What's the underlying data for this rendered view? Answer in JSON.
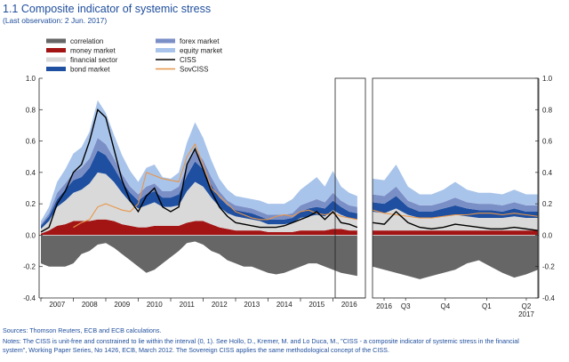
{
  "title": "1.1 Composite indicator of systemic stress",
  "subtitle": "(Last observation: 2 Jun. 2017)",
  "colors": {
    "correlation": "#666666",
    "money_market": "#a31515",
    "financial_sector": "#d9d9d9",
    "bond_market": "#1f4fa0",
    "forex_market": "#7b8fc7",
    "equity_market": "#a9c4ea",
    "ciss": "#000000",
    "sovciss": "#e8964a",
    "title": "#1f4e9c"
  },
  "legend": [
    {
      "key": "correlation",
      "label": "correlation",
      "type": "area"
    },
    {
      "key": "forex_market",
      "label": "forex market",
      "type": "area"
    },
    {
      "key": "money_market",
      "label": "money market",
      "type": "area"
    },
    {
      "key": "equity_market",
      "label": "equity market",
      "type": "area"
    },
    {
      "key": "financial_sector",
      "label": "financial sector",
      "type": "area"
    },
    {
      "key": "ciss",
      "label": "CISS",
      "type": "line"
    },
    {
      "key": "bond_market",
      "label": "bond market",
      "type": "area"
    },
    {
      "key": "sovciss",
      "label": "SovCISS",
      "type": "line"
    }
  ],
  "chart_data": {
    "type": "area",
    "ylim": [
      -0.4,
      1.0
    ],
    "y_ticks": [
      "-0.4",
      "-0.2",
      "0.0",
      "0.2",
      "0.4",
      "0.6",
      "0.8",
      "1.0"
    ],
    "grid": false,
    "legend_position": "top",
    "panels": [
      {
        "name": "long",
        "x_ticks": [
          "2007",
          "2008",
          "2009",
          "2010",
          "2011",
          "2012",
          "2013",
          "2014",
          "2015",
          "2016"
        ],
        "x": [
          2007.0,
          2007.25,
          2007.5,
          2007.75,
          2008.0,
          2008.25,
          2008.5,
          2008.75,
          2009.0,
          2009.25,
          2009.5,
          2009.75,
          2010.0,
          2010.25,
          2010.5,
          2010.75,
          2011.0,
          2011.25,
          2011.5,
          2011.75,
          2012.0,
          2012.25,
          2012.5,
          2012.75,
          2013.0,
          2013.25,
          2013.5,
          2013.75,
          2014.0,
          2014.25,
          2014.5,
          2014.75,
          2015.0,
          2015.25,
          2015.5,
          2015.75,
          2016.0,
          2016.25,
          2016.5,
          2016.75
        ],
        "correlation": [
          -0.18,
          -0.2,
          -0.2,
          -0.2,
          -0.18,
          -0.12,
          -0.1,
          -0.06,
          -0.05,
          -0.08,
          -0.12,
          -0.16,
          -0.2,
          -0.24,
          -0.22,
          -0.18,
          -0.14,
          -0.1,
          -0.05,
          -0.04,
          -0.06,
          -0.1,
          -0.12,
          -0.16,
          -0.18,
          -0.2,
          -0.2,
          -0.22,
          -0.24,
          -0.25,
          -0.24,
          -0.22,
          -0.2,
          -0.18,
          -0.18,
          -0.2,
          -0.22,
          -0.24,
          -0.25,
          -0.26
        ],
        "money_market": [
          0.01,
          0.03,
          0.06,
          0.07,
          0.09,
          0.09,
          0.09,
          0.1,
          0.1,
          0.09,
          0.07,
          0.06,
          0.05,
          0.05,
          0.06,
          0.06,
          0.06,
          0.06,
          0.08,
          0.09,
          0.09,
          0.07,
          0.05,
          0.04,
          0.03,
          0.03,
          0.03,
          0.03,
          0.02,
          0.02,
          0.02,
          0.02,
          0.03,
          0.03,
          0.03,
          0.03,
          0.04,
          0.04,
          0.03,
          0.03
        ],
        "financial_sector": [
          0.03,
          0.06,
          0.12,
          0.15,
          0.18,
          0.2,
          0.24,
          0.3,
          0.29,
          0.25,
          0.2,
          0.15,
          0.12,
          0.14,
          0.15,
          0.12,
          0.12,
          0.13,
          0.2,
          0.25,
          0.22,
          0.17,
          0.13,
          0.1,
          0.09,
          0.08,
          0.07,
          0.06,
          0.05,
          0.05,
          0.05,
          0.06,
          0.08,
          0.09,
          0.1,
          0.09,
          0.12,
          0.09,
          0.08,
          0.07
        ],
        "bond_market": [
          0.02,
          0.03,
          0.05,
          0.07,
          0.08,
          0.08,
          0.1,
          0.14,
          0.12,
          0.09,
          0.07,
          0.06,
          0.05,
          0.07,
          0.07,
          0.06,
          0.06,
          0.07,
          0.1,
          0.13,
          0.11,
          0.08,
          0.06,
          0.05,
          0.04,
          0.04,
          0.04,
          0.03,
          0.03,
          0.03,
          0.03,
          0.03,
          0.04,
          0.05,
          0.05,
          0.05,
          0.06,
          0.05,
          0.04,
          0.04
        ],
        "forex_market": [
          0.01,
          0.02,
          0.04,
          0.04,
          0.05,
          0.06,
          0.06,
          0.08,
          0.07,
          0.06,
          0.05,
          0.04,
          0.04,
          0.05,
          0.05,
          0.04,
          0.04,
          0.05,
          0.06,
          0.07,
          0.06,
          0.05,
          0.04,
          0.03,
          0.03,
          0.03,
          0.03,
          0.03,
          0.03,
          0.03,
          0.03,
          0.03,
          0.04,
          0.04,
          0.05,
          0.04,
          0.05,
          0.04,
          0.04,
          0.04
        ],
        "equity_market": [
          0.02,
          0.04,
          0.07,
          0.09,
          0.12,
          0.13,
          0.17,
          0.24,
          0.2,
          0.15,
          0.12,
          0.1,
          0.08,
          0.12,
          0.12,
          0.09,
          0.08,
          0.09,
          0.15,
          0.18,
          0.14,
          0.11,
          0.08,
          0.07,
          0.06,
          0.06,
          0.06,
          0.07,
          0.07,
          0.07,
          0.07,
          0.09,
          0.1,
          0.12,
          0.14,
          0.1,
          0.14,
          0.09,
          0.08,
          0.07
        ],
        "ciss": [
          0.02,
          0.05,
          0.2,
          0.28,
          0.4,
          0.45,
          0.6,
          0.8,
          0.75,
          0.55,
          0.35,
          0.22,
          0.15,
          0.25,
          0.3,
          0.18,
          0.15,
          0.18,
          0.45,
          0.55,
          0.42,
          0.28,
          0.18,
          0.12,
          0.08,
          0.07,
          0.06,
          0.05,
          0.05,
          0.05,
          0.06,
          0.08,
          0.1,
          0.12,
          0.15,
          0.1,
          0.15,
          0.08,
          0.07,
          0.05
        ],
        "sovciss": [
          null,
          null,
          null,
          null,
          0.05,
          0.08,
          0.1,
          0.18,
          0.2,
          0.18,
          0.16,
          0.15,
          0.2,
          0.4,
          0.38,
          0.36,
          0.35,
          0.34,
          0.5,
          0.58,
          0.45,
          0.3,
          0.25,
          0.2,
          0.15,
          0.13,
          0.11,
          0.1,
          0.1,
          0.12,
          0.13,
          0.12,
          0.15,
          0.16,
          0.14,
          0.13,
          0.14,
          0.12,
          0.11,
          0.1
        ]
      },
      {
        "name": "recent",
        "x_ticks": [
          "2016",
          "Q3",
          "Q4",
          "Q1",
          "Q2"
        ],
        "x_ticks_second_line": [
          "",
          "",
          "",
          "",
          "2017"
        ],
        "x": [
          "2016-04",
          "2016-05",
          "2016-06",
          "2016-07",
          "2016-08",
          "2016-09",
          "2016-10",
          "2016-11",
          "2016-12",
          "2017-01",
          "2017-02",
          "2017-03",
          "2017-04",
          "2017-05",
          "2017-06"
        ],
        "correlation": [
          -0.2,
          -0.22,
          -0.24,
          -0.26,
          -0.28,
          -0.26,
          -0.24,
          -0.22,
          -0.18,
          -0.16,
          -0.2,
          -0.24,
          -0.27,
          -0.25,
          -0.22
        ],
        "money_market": [
          0.03,
          0.03,
          0.03,
          0.03,
          0.03,
          0.03,
          0.03,
          0.03,
          0.03,
          0.03,
          0.03,
          0.03,
          0.03,
          0.03,
          0.03
        ],
        "financial_sector": [
          0.12,
          0.11,
          0.14,
          0.1,
          0.08,
          0.08,
          0.09,
          0.1,
          0.09,
          0.08,
          0.08,
          0.08,
          0.09,
          0.08,
          0.08
        ],
        "bond_market": [
          0.06,
          0.06,
          0.08,
          0.05,
          0.04,
          0.04,
          0.05,
          0.06,
          0.05,
          0.05,
          0.05,
          0.04,
          0.05,
          0.04,
          0.04
        ],
        "forex_market": [
          0.05,
          0.05,
          0.06,
          0.04,
          0.04,
          0.04,
          0.04,
          0.05,
          0.04,
          0.04,
          0.04,
          0.04,
          0.04,
          0.04,
          0.04
        ],
        "equity_market": [
          0.1,
          0.1,
          0.14,
          0.09,
          0.07,
          0.07,
          0.08,
          0.1,
          0.08,
          0.07,
          0.07,
          0.07,
          0.08,
          0.07,
          0.07
        ],
        "ciss": [
          0.08,
          0.07,
          0.15,
          0.08,
          0.05,
          0.04,
          0.05,
          0.07,
          0.06,
          0.05,
          0.04,
          0.04,
          0.05,
          0.04,
          0.03
        ],
        "sovciss": [
          0.16,
          0.14,
          0.13,
          0.12,
          0.11,
          0.11,
          0.12,
          0.13,
          0.13,
          0.14,
          0.14,
          0.13,
          0.14,
          0.13,
          0.12
        ]
      }
    ]
  },
  "footer": {
    "sources": "Sources: Thomson Reuters, ECB and ECB calculations.",
    "notes_line1": "Notes: The CISS is unit-free and constrained to lie within the interval (0, 1). See Hollo, D., Kremer, M. and Lo Duca, M., \"CISS - a composite indicator of systemic stress in the financial",
    "notes_line2": "system\", Working Paper Series, No 1426, ECB, March 2012. The Sovereign CISS applies the same methodological concept of the CISS."
  }
}
